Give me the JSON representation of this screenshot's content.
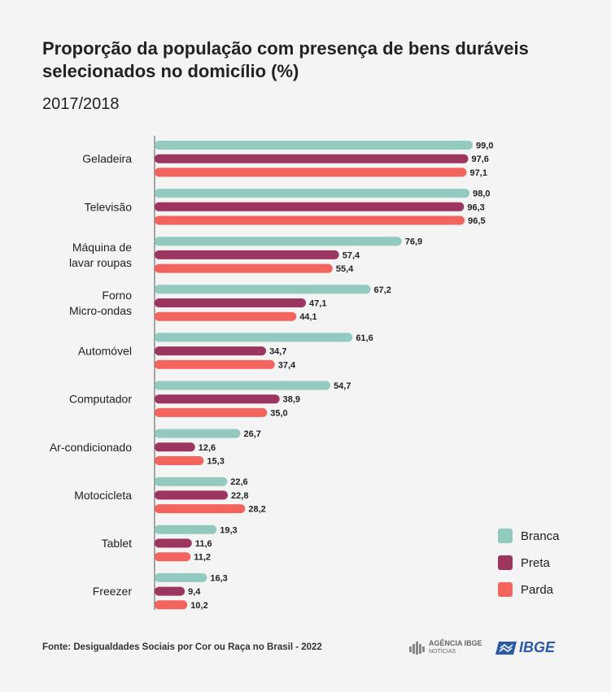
{
  "title": "Proporção da população com presença de bens duráveis selecionados no domicílio (%)",
  "subtitle": "2017/2018",
  "source": "Fonte: Desigualdades Sociais por Cor ou Raça no Brasil - 2022",
  "logos": {
    "agencia": "AGÊNCIA IBGE",
    "agencia_sub": "NOTÍCIAS",
    "ibge": "IBGE"
  },
  "colors": {
    "Branca": "#93cac0",
    "Preta": "#9c3560",
    "Parda": "#f4645e"
  },
  "chart_data": {
    "type": "bar",
    "orientation": "horizontal",
    "categories": [
      [
        "Geladeira"
      ],
      [
        "Televisão"
      ],
      [
        "Máquina de",
        "lavar roupas"
      ],
      [
        "Forno",
        "Micro-ondas"
      ],
      [
        "Automóvel"
      ],
      [
        "Computador"
      ],
      [
        "Ar-condicionado"
      ],
      [
        "Motocicleta"
      ],
      [
        "Tablet"
      ],
      [
        "Freezer"
      ]
    ],
    "series": [
      {
        "name": "Branca",
        "values": [
          99.0,
          98.0,
          76.9,
          67.2,
          61.6,
          54.7,
          26.7,
          22.6,
          19.3,
          16.3
        ],
        "labels": [
          "99,0",
          "98,0",
          "76,9",
          "67,2",
          "61,6",
          "54,7",
          "26,7",
          "22,6",
          "19,3",
          "16,3"
        ]
      },
      {
        "name": "Preta",
        "values": [
          97.6,
          96.3,
          57.4,
          47.1,
          34.7,
          38.9,
          12.6,
          22.8,
          11.6,
          9.4
        ],
        "labels": [
          "97,6",
          "96,3",
          "57,4",
          "47,1",
          "34,7",
          "38,9",
          "12,6",
          "22,8",
          "11,6",
          "9,4"
        ]
      },
      {
        "name": "Parda",
        "values": [
          97.1,
          96.5,
          55.4,
          44.1,
          37.4,
          35.0,
          15.3,
          28.2,
          11.2,
          10.2
        ],
        "labels": [
          "97,1",
          "96,5",
          "55,4",
          "44,1",
          "37,4",
          "35,0",
          "15,3",
          "28,2",
          "11,2",
          "10,2"
        ]
      }
    ],
    "xlim": [
      0,
      100
    ],
    "legend": "right"
  }
}
